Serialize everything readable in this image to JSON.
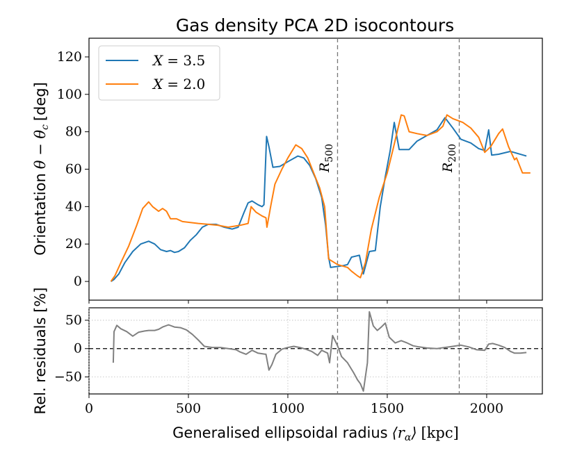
{
  "chart_data": [
    {
      "type": "line",
      "title": "Gas density PCA 2D isocontours",
      "ylabel": "Orientation",
      "ylabel_math": "θ − θ",
      "ylabel_math_sub": "c",
      "ylabel_unit": "[deg]",
      "xlim": [
        0,
        2280
      ],
      "ylim": [
        -10,
        130
      ],
      "yticks": [
        0,
        20,
        40,
        60,
        80,
        100,
        120
      ],
      "vlines": [
        {
          "x": 1250,
          "label": "R",
          "sub": "500"
        },
        {
          "x": 1862,
          "label": "R",
          "sub": "200"
        }
      ],
      "legend": "upper-left",
      "series": [
        {
          "name": "X = 3.5",
          "name_lhs": "X",
          "name_rhs": "= 3.5",
          "color": "#1f77b4",
          "points": [
            [
              110,
              0
            ],
            [
              125,
              1
            ],
            [
              150,
              4
            ],
            [
              180,
              10
            ],
            [
              220,
              16
            ],
            [
              260,
              20
            ],
            [
              300,
              21.5
            ],
            [
              330,
              20
            ],
            [
              360,
              17
            ],
            [
              390,
              16
            ],
            [
              410,
              16.5
            ],
            [
              430,
              15.5
            ],
            [
              450,
              16
            ],
            [
              480,
              18
            ],
            [
              510,
              22
            ],
            [
              540,
              25
            ],
            [
              570,
              29
            ],
            [
              600,
              30.5
            ],
            [
              640,
              30.5
            ],
            [
              680,
              29
            ],
            [
              720,
              28
            ],
            [
              750,
              29
            ],
            [
              780,
              37
            ],
            [
              800,
              42
            ],
            [
              820,
              43
            ],
            [
              850,
              41
            ],
            [
              870,
              40
            ],
            [
              880,
              41
            ],
            [
              893,
              77.5
            ],
            [
              905,
              72
            ],
            [
              925,
              61
            ],
            [
              960,
              61.5
            ],
            [
              1000,
              64
            ],
            [
              1050,
              67
            ],
            [
              1080,
              66
            ],
            [
              1110,
              62
            ],
            [
              1140,
              55
            ],
            [
              1170,
              45
            ],
            [
              1190,
              30
            ],
            [
              1205,
              13
            ],
            [
              1215,
              7.5
            ],
            [
              1250,
              8
            ],
            [
              1280,
              8.5
            ],
            [
              1300,
              9
            ],
            [
              1320,
              13
            ],
            [
              1360,
              14
            ],
            [
              1380,
              4
            ],
            [
              1410,
              16
            ],
            [
              1440,
              16.5
            ],
            [
              1465,
              40
            ],
            [
              1490,
              56
            ],
            [
              1515,
              70
            ],
            [
              1535,
              85
            ],
            [
              1560,
              70.5
            ],
            [
              1610,
              70.5
            ],
            [
              1650,
              75
            ],
            [
              1700,
              78
            ],
            [
              1750,
              81
            ],
            [
              1790,
              87.5
            ],
            [
              1830,
              82
            ],
            [
              1870,
              76
            ],
            [
              1920,
              74
            ],
            [
              1960,
              71
            ],
            [
              1990,
              70
            ],
            [
              2010,
              81
            ],
            [
              2025,
              67.5
            ],
            [
              2060,
              68
            ],
            [
              2120,
              69.5
            ],
            [
              2200,
              67
            ]
          ]
        },
        {
          "name": "X = 2.0",
          "name_lhs": "X",
          "name_rhs": "= 2.0",
          "color": "#ff7f0e",
          "points": [
            [
              110,
              0
            ],
            [
              130,
              3
            ],
            [
              160,
              10
            ],
            [
              200,
              19
            ],
            [
              240,
              30
            ],
            [
              270,
              39
            ],
            [
              300,
              42.5
            ],
            [
              320,
              40
            ],
            [
              350,
              37.5
            ],
            [
              370,
              39
            ],
            [
              390,
              37.5
            ],
            [
              410,
              33.5
            ],
            [
              440,
              33.5
            ],
            [
              470,
              32
            ],
            [
              510,
              31.5
            ],
            [
              550,
              31
            ],
            [
              600,
              30.5
            ],
            [
              650,
              30
            ],
            [
              700,
              29
            ],
            [
              760,
              30
            ],
            [
              800,
              31
            ],
            [
              815,
              40
            ],
            [
              840,
              37
            ],
            [
              870,
              35
            ],
            [
              890,
              34
            ],
            [
              895,
              29
            ],
            [
              915,
              41
            ],
            [
              935,
              52
            ],
            [
              970,
              60
            ],
            [
              1000,
              66
            ],
            [
              1040,
              73
            ],
            [
              1070,
              71
            ],
            [
              1100,
              66
            ],
            [
              1130,
              58
            ],
            [
              1160,
              50
            ],
            [
              1185,
              40
            ],
            [
              1205,
              12
            ],
            [
              1250,
              9
            ],
            [
              1300,
              7.5
            ],
            [
              1320,
              5.5
            ],
            [
              1350,
              3
            ],
            [
              1365,
              2
            ],
            [
              1390,
              10
            ],
            [
              1420,
              28
            ],
            [
              1460,
              45
            ],
            [
              1500,
              58
            ],
            [
              1530,
              71
            ],
            [
              1550,
              80
            ],
            [
              1570,
              89
            ],
            [
              1585,
              88.5
            ],
            [
              1610,
              80
            ],
            [
              1650,
              79
            ],
            [
              1700,
              78
            ],
            [
              1750,
              80
            ],
            [
              1780,
              83
            ],
            [
              1800,
              89
            ],
            [
              1830,
              87
            ],
            [
              1880,
              85
            ],
            [
              1920,
              82
            ],
            [
              1960,
              77
            ],
            [
              1990,
              69
            ],
            [
              2020,
              72
            ],
            [
              2060,
              79
            ],
            [
              2080,
              81.5
            ],
            [
              2110,
              72
            ],
            [
              2140,
              65
            ],
            [
              2150,
              66
            ],
            [
              2180,
              58
            ],
            [
              2220,
              58
            ]
          ]
        }
      ]
    },
    {
      "type": "line",
      "ylabel": "Rel. residuals [%]",
      "xlabel": "Generalised ellipsoidal radius",
      "xlabel_math": "⟨r",
      "xlabel_math_sub": "α",
      "xlabel_math_end": "⟩",
      "xlabel_unit": "[kpc]",
      "xlim": [
        0,
        2280
      ],
      "ylim": [
        -80,
        72
      ],
      "yticks": [
        -50,
        0,
        50
      ],
      "xticks": [
        0,
        500,
        1000,
        1500,
        2000
      ],
      "ytick_labels": [
        "−50",
        "0",
        "50"
      ],
      "grid": true,
      "hline": 0,
      "series": [
        {
          "color": "#808080",
          "points": [
            [
              122,
              -25
            ],
            [
              126,
              30
            ],
            [
              140,
              41
            ],
            [
              160,
              35
            ],
            [
              190,
              30
            ],
            [
              220,
              22
            ],
            [
              250,
              29
            ],
            [
              280,
              31
            ],
            [
              300,
              32
            ],
            [
              330,
              32
            ],
            [
              350,
              34
            ],
            [
              370,
              38
            ],
            [
              400,
              42
            ],
            [
              430,
              38
            ],
            [
              460,
              37
            ],
            [
              490,
              33
            ],
            [
              520,
              25
            ],
            [
              550,
              15
            ],
            [
              580,
              4
            ],
            [
              620,
              2
            ],
            [
              660,
              2
            ],
            [
              700,
              0
            ],
            [
              740,
              -2
            ],
            [
              760,
              -6
            ],
            [
              790,
              -10
            ],
            [
              820,
              -3
            ],
            [
              850,
              -8
            ],
            [
              870,
              -9
            ],
            [
              890,
              -10
            ],
            [
              905,
              -38
            ],
            [
              920,
              -28
            ],
            [
              940,
              -10
            ],
            [
              970,
              -1
            ],
            [
              1000,
              2
            ],
            [
              1030,
              4
            ],
            [
              1060,
              2
            ],
            [
              1090,
              -1
            ],
            [
              1120,
              -5
            ],
            [
              1150,
              -12
            ],
            [
              1170,
              -3
            ],
            [
              1200,
              -8
            ],
            [
              1210,
              -25
            ],
            [
              1225,
              23
            ],
            [
              1250,
              5
            ],
            [
              1270,
              -14
            ],
            [
              1300,
              -25
            ],
            [
              1330,
              -42
            ],
            [
              1350,
              -55
            ],
            [
              1365,
              -62
            ],
            [
              1380,
              -75
            ],
            [
              1400,
              -25
            ],
            [
              1410,
              65
            ],
            [
              1430,
              40
            ],
            [
              1450,
              32
            ],
            [
              1470,
              38
            ],
            [
              1490,
              45
            ],
            [
              1510,
              20
            ],
            [
              1540,
              10
            ],
            [
              1570,
              14
            ],
            [
              1600,
              10
            ],
            [
              1630,
              5
            ],
            [
              1660,
              3
            ],
            [
              1700,
              1
            ],
            [
              1750,
              0
            ],
            [
              1790,
              2
            ],
            [
              1830,
              4
            ],
            [
              1870,
              6
            ],
            [
              1910,
              3
            ],
            [
              1950,
              -2
            ],
            [
              1990,
              -3
            ],
            [
              2010,
              8
            ],
            [
              2030,
              9
            ],
            [
              2060,
              6
            ],
            [
              2090,
              2
            ],
            [
              2120,
              -5
            ],
            [
              2140,
              -8
            ],
            [
              2170,
              -8
            ],
            [
              2200,
              -7
            ]
          ]
        }
      ]
    }
  ]
}
